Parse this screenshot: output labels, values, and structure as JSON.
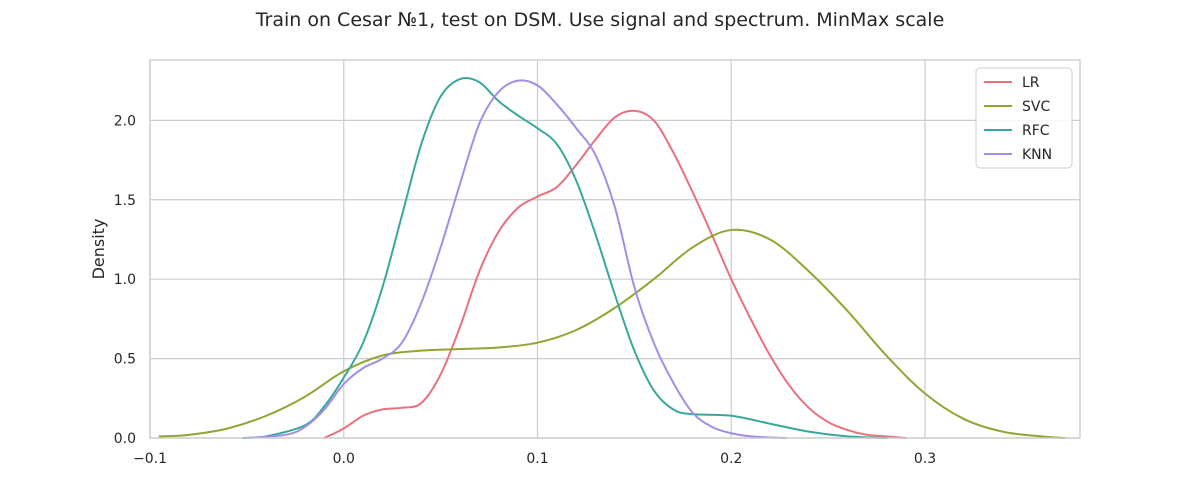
{
  "chart_data": {
    "type": "line",
    "title": "Train on Cesar №1, test on DSM. Use signal and spectrum. MinMax scale",
    "xlabel": "",
    "ylabel": "Density",
    "xlim": [
      -0.1,
      0.38
    ],
    "ylim": [
      0,
      2.38
    ],
    "x_ticks": [
      -0.1,
      0.0,
      0.1,
      0.2,
      0.3
    ],
    "x_tick_labels": [
      "−0.1",
      "0.0",
      "0.1",
      "0.2",
      "0.3"
    ],
    "y_ticks": [
      0.0,
      0.5,
      1.0,
      1.5,
      2.0
    ],
    "y_tick_labels": [
      "0.0",
      "0.5",
      "1.0",
      "1.5",
      "2.0"
    ],
    "grid": true,
    "legend_position": "top-right",
    "series": [
      {
        "name": "LR",
        "color": "#e8707f",
        "points": [
          [
            -0.01,
            0.0
          ],
          [
            0.0,
            0.06
          ],
          [
            0.01,
            0.14
          ],
          [
            0.02,
            0.18
          ],
          [
            0.03,
            0.19
          ],
          [
            0.04,
            0.22
          ],
          [
            0.05,
            0.4
          ],
          [
            0.06,
            0.7
          ],
          [
            0.07,
            1.05
          ],
          [
            0.08,
            1.3
          ],
          [
            0.09,
            1.45
          ],
          [
            0.1,
            1.52
          ],
          [
            0.11,
            1.58
          ],
          [
            0.12,
            1.72
          ],
          [
            0.13,
            1.88
          ],
          [
            0.14,
            2.02
          ],
          [
            0.15,
            2.06
          ],
          [
            0.16,
            2.0
          ],
          [
            0.17,
            1.8
          ],
          [
            0.18,
            1.55
          ],
          [
            0.19,
            1.28
          ],
          [
            0.2,
            1.0
          ],
          [
            0.21,
            0.75
          ],
          [
            0.22,
            0.52
          ],
          [
            0.23,
            0.33
          ],
          [
            0.24,
            0.19
          ],
          [
            0.25,
            0.1
          ],
          [
            0.26,
            0.05
          ],
          [
            0.27,
            0.02
          ],
          [
            0.28,
            0.01
          ],
          [
            0.29,
            0.0
          ]
        ]
      },
      {
        "name": "SVC",
        "color": "#8da634",
        "points": [
          [
            -0.095,
            0.01
          ],
          [
            -0.08,
            0.02
          ],
          [
            -0.06,
            0.06
          ],
          [
            -0.04,
            0.14
          ],
          [
            -0.02,
            0.26
          ],
          [
            0.0,
            0.42
          ],
          [
            0.02,
            0.52
          ],
          [
            0.04,
            0.55
          ],
          [
            0.06,
            0.56
          ],
          [
            0.08,
            0.57
          ],
          [
            0.1,
            0.6
          ],
          [
            0.12,
            0.68
          ],
          [
            0.14,
            0.82
          ],
          [
            0.16,
            1.0
          ],
          [
            0.18,
            1.2
          ],
          [
            0.2,
            1.31
          ],
          [
            0.22,
            1.25
          ],
          [
            0.24,
            1.05
          ],
          [
            0.26,
            0.8
          ],
          [
            0.28,
            0.52
          ],
          [
            0.3,
            0.28
          ],
          [
            0.32,
            0.12
          ],
          [
            0.34,
            0.04
          ],
          [
            0.36,
            0.01
          ],
          [
            0.372,
            0.0
          ]
        ]
      },
      {
        "name": "RFC",
        "color": "#38a89c",
        "points": [
          [
            -0.052,
            0.0
          ],
          [
            -0.04,
            0.01
          ],
          [
            -0.02,
            0.08
          ],
          [
            -0.01,
            0.2
          ],
          [
            0.0,
            0.38
          ],
          [
            0.01,
            0.6
          ],
          [
            0.02,
            0.95
          ],
          [
            0.03,
            1.4
          ],
          [
            0.04,
            1.85
          ],
          [
            0.05,
            2.15
          ],
          [
            0.06,
            2.26
          ],
          [
            0.07,
            2.24
          ],
          [
            0.08,
            2.12
          ],
          [
            0.09,
            2.03
          ],
          [
            0.1,
            1.95
          ],
          [
            0.11,
            1.85
          ],
          [
            0.12,
            1.62
          ],
          [
            0.13,
            1.28
          ],
          [
            0.14,
            0.9
          ],
          [
            0.15,
            0.55
          ],
          [
            0.16,
            0.3
          ],
          [
            0.17,
            0.18
          ],
          [
            0.18,
            0.15
          ],
          [
            0.2,
            0.14
          ],
          [
            0.22,
            0.09
          ],
          [
            0.24,
            0.04
          ],
          [
            0.26,
            0.01
          ],
          [
            0.28,
            0.0
          ]
        ]
      },
      {
        "name": "KNN",
        "color": "#a38de8",
        "points": [
          [
            -0.05,
            0.0
          ],
          [
            -0.03,
            0.02
          ],
          [
            -0.02,
            0.07
          ],
          [
            -0.01,
            0.18
          ],
          [
            0.0,
            0.34
          ],
          [
            0.01,
            0.44
          ],
          [
            0.02,
            0.5
          ],
          [
            0.03,
            0.6
          ],
          [
            0.04,
            0.85
          ],
          [
            0.05,
            1.2
          ],
          [
            0.06,
            1.6
          ],
          [
            0.07,
            1.98
          ],
          [
            0.08,
            2.18
          ],
          [
            0.09,
            2.25
          ],
          [
            0.1,
            2.22
          ],
          [
            0.11,
            2.1
          ],
          [
            0.12,
            1.95
          ],
          [
            0.13,
            1.78
          ],
          [
            0.14,
            1.45
          ],
          [
            0.15,
            0.95
          ],
          [
            0.16,
            0.6
          ],
          [
            0.17,
            0.35
          ],
          [
            0.18,
            0.16
          ],
          [
            0.19,
            0.07
          ],
          [
            0.2,
            0.03
          ],
          [
            0.21,
            0.01
          ],
          [
            0.228,
            0.0
          ]
        ]
      }
    ]
  }
}
